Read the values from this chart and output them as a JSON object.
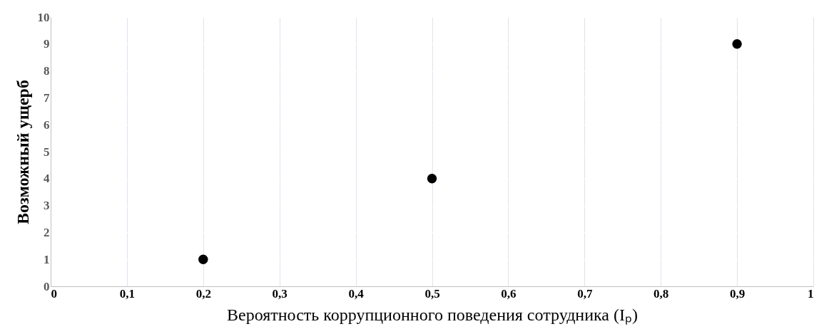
{
  "chart_data": {
    "type": "scatter",
    "xlabel": "Вероятность коррупционного поведения сотрудника (Iₚ)",
    "ylabel": "Возможный ущерб",
    "x": [
      0.2,
      0.5,
      0.9
    ],
    "values": [
      1,
      4,
      9
    ],
    "color": "#000000",
    "marker": "circle",
    "xlim": [
      0,
      1
    ],
    "xticks": [
      0,
      {
        "value": 0.1,
        "label": "0,1"
      },
      {
        "value": 0.2,
        "label": "0,2"
      },
      {
        "value": 0.3,
        "label": "0,3"
      },
      {
        "value": 0.4,
        "label": "0,4"
      },
      {
        "value": 0.5,
        "label": "0,5"
      },
      {
        "value": 0.6,
        "label": "0,6"
      },
      {
        "value": 0.7,
        "label": "0,7"
      },
      {
        "value": 0.8,
        "label": "0,8"
      },
      {
        "value": 0.9,
        "label": "0,9"
      },
      1
    ],
    "ylim": [
      0,
      10
    ],
    "yticks": [
      0,
      1,
      2,
      3,
      4,
      5,
      6,
      7,
      8,
      9,
      10
    ],
    "grid": true
  }
}
